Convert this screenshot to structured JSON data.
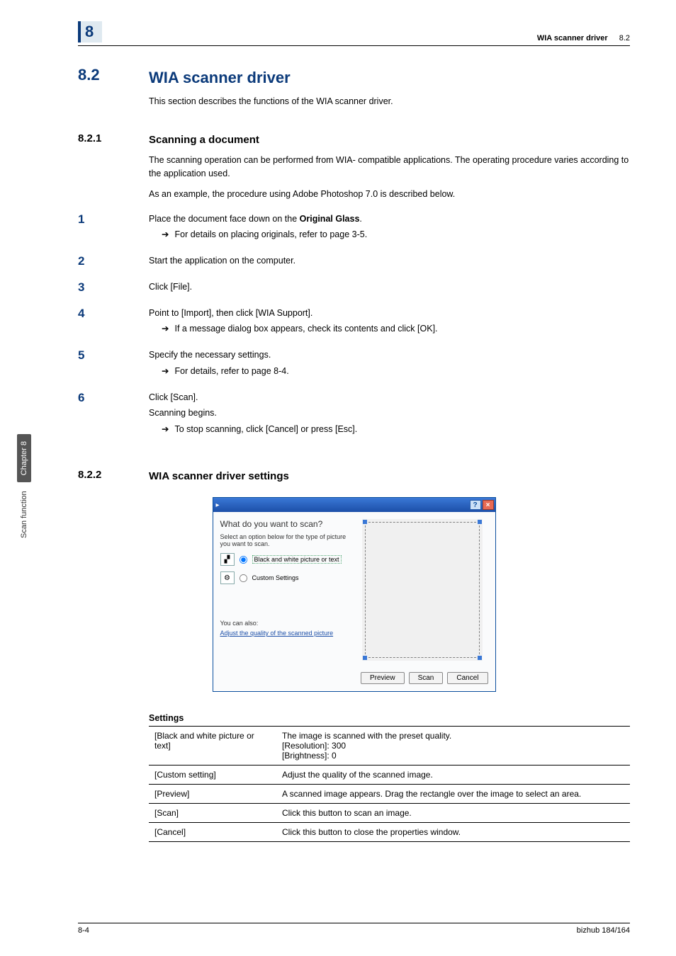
{
  "sidebar": {
    "chapter_tab": "Chapter 8",
    "function_label": "Scan function"
  },
  "header": {
    "chapter_num": "8",
    "breadcrumb_bold": "WIA scanner driver",
    "breadcrumb_sec": "8.2"
  },
  "section": {
    "num": "8.2",
    "title": "WIA scanner driver",
    "intro": "This section describes the functions of the WIA scanner driver."
  },
  "sub1": {
    "num": "8.2.1",
    "title": "Scanning a document",
    "p1": "The scanning operation can be performed from WIA- compatible applications. The operating procedure varies according to the application used.",
    "p2": "As an example, the procedure using Adobe Photoshop 7.0 is described below.",
    "steps": [
      {
        "n": "1",
        "text_pre": "Place the document face down on the ",
        "text_bold": "Original Glass",
        "text_post": ".",
        "sub": "For details on placing originals, refer to page 3-5."
      },
      {
        "n": "2",
        "text": "Start the application on the computer."
      },
      {
        "n": "3",
        "text": "Click [File]."
      },
      {
        "n": "4",
        "text": "Point to [Import], then click [WIA Support].",
        "sub": "If a message dialog box appears, check its contents and click [OK]."
      },
      {
        "n": "5",
        "text": "Specify the necessary settings.",
        "sub": "For details, refer to page 8-4."
      },
      {
        "n": "6",
        "text": "Click [Scan].",
        "after": "Scanning begins.",
        "sub": "To stop scanning, click [Cancel] or press [Esc]."
      }
    ]
  },
  "sub2": {
    "num": "8.2.2",
    "title": "WIA scanner driver settings"
  },
  "dialog": {
    "question": "What do you want to scan?",
    "subtext": "Select an option below for the type of picture you want to scan.",
    "opt_bw": "Black and white picture or text",
    "opt_custom": "Custom Settings",
    "also": "You can also:",
    "link": "Adjust the quality of the scanned picture",
    "btn_preview": "Preview",
    "btn_scan": "Scan",
    "btn_cancel": "Cancel"
  },
  "table": {
    "caption": "Settings",
    "rows": [
      {
        "k": "[Black and white picture or text]",
        "v": "The image is scanned with the preset quality.\n[Resolution]: 300\n[Brightness]: 0"
      },
      {
        "k": "[Custom setting]",
        "v": "Adjust the quality of the scanned image."
      },
      {
        "k": "[Preview]",
        "v": "A scanned image appears. Drag the rectangle over the image to select an area."
      },
      {
        "k": "[Scan]",
        "v": "Click this button to scan an image."
      },
      {
        "k": "[Cancel]",
        "v": "Click this button to close the properties window."
      }
    ]
  },
  "footer": {
    "page": "8-4",
    "model": "bizhub 184/164"
  }
}
